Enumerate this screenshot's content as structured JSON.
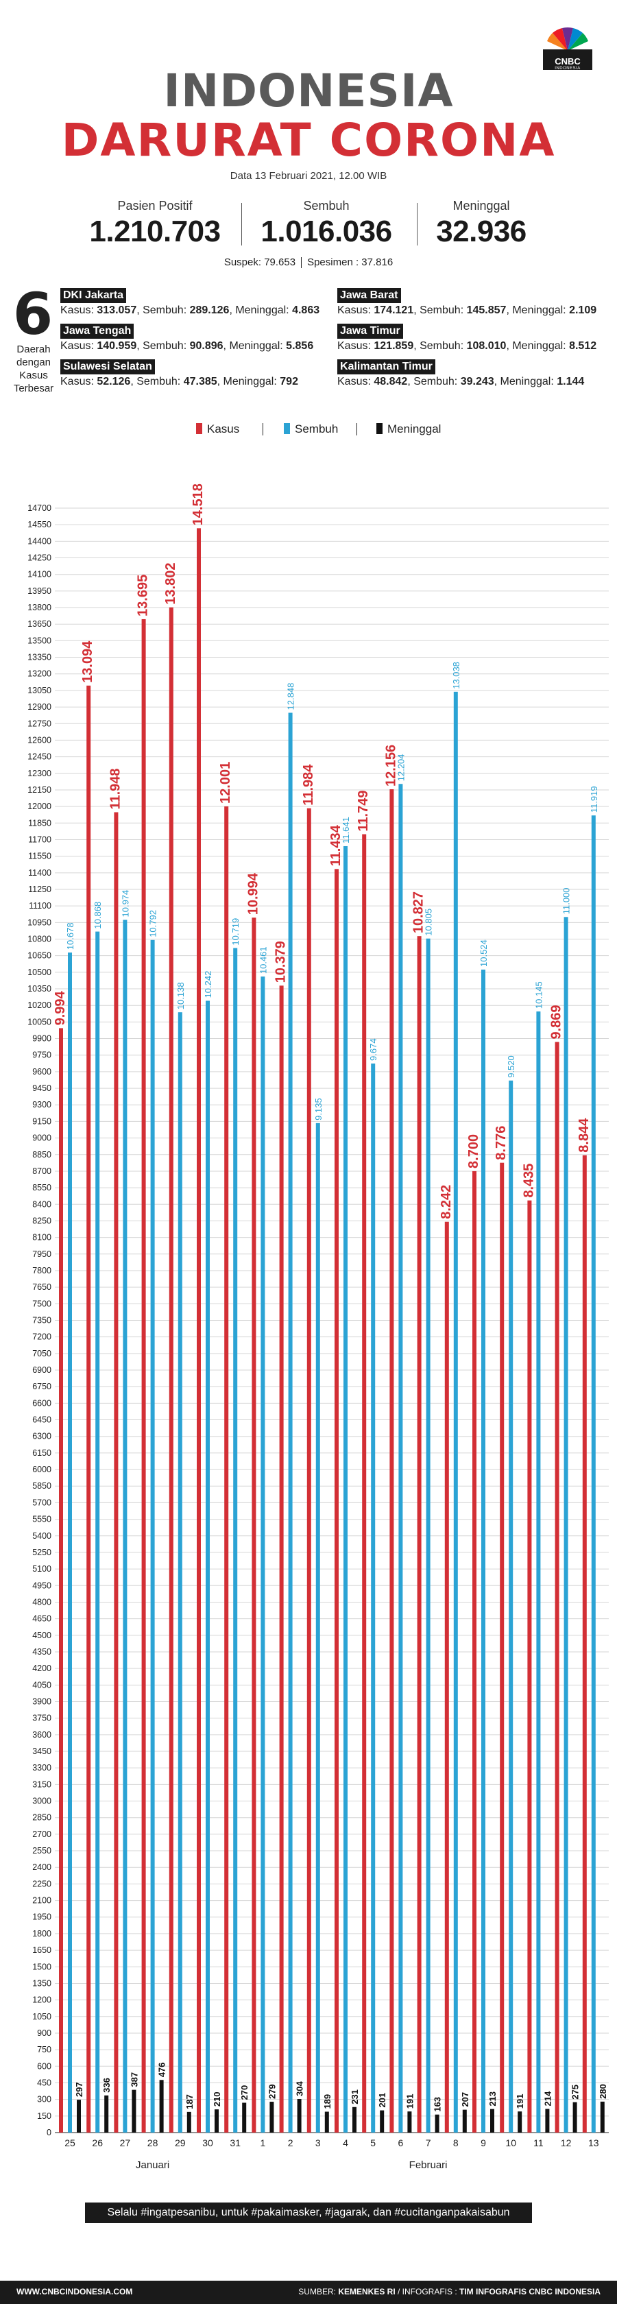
{
  "logo": {
    "text": "CNBC",
    "sub": "INDONESIA"
  },
  "header": {
    "title_line1": "INDONESIA",
    "title_line2": "DARURAT CORONA",
    "date": "Data 13 Februari 2021, 12.00 WIB"
  },
  "stats": {
    "positif_label": "Pasien Positif",
    "positif_value": "1.210.703",
    "sembuh_label": "Sembuh",
    "sembuh_value": "1.016.036",
    "meninggal_label": "Meninggal",
    "meninggal_value": "32.936",
    "suspek": "Suspek: 79.653",
    "spesimen": "Spesimen : 37.816"
  },
  "regions": {
    "count": "6",
    "count_label_line1": "Daerah",
    "count_label_line2": "dengan",
    "count_label_line3": "Kasus",
    "count_label_line4": "Terbesar",
    "items": [
      {
        "name": "DKI Jakarta",
        "kasus": "313.057",
        "sembuh": "289.126",
        "meninggal": "4.863"
      },
      {
        "name": "Jawa Barat",
        "kasus": "174.121",
        "sembuh": "145.857",
        "meninggal": "2.109"
      },
      {
        "name": "Jawa Tengah",
        "kasus": "140.959",
        "sembuh": "90.896",
        "meninggal": "5.856"
      },
      {
        "name": "Jawa Timur",
        "kasus": "121.859",
        "sembuh": "108.010",
        "meninggal": "8.512"
      },
      {
        "name": "Sulawesi Selatan",
        "kasus": "52.126",
        "sembuh": "47.385",
        "meninggal": "792"
      },
      {
        "name": "Kalimantan Timur",
        "kasus": "48.842",
        "sembuh": "39.243",
        "meninggal": "1.144"
      }
    ],
    "kasus_word": "Kasus:",
    "sembuh_word": "Sembuh:",
    "meninggal_word": "Meninggal:"
  },
  "colors": {
    "kasus": "#d32f35",
    "sembuh": "#2ba3d4",
    "meninggal": "#111111",
    "text": "#1a1a1a"
  },
  "chart_data": {
    "type": "bar",
    "categories": [
      "25",
      "26",
      "27",
      "28",
      "29",
      "30",
      "31",
      "1",
      "2",
      "3",
      "4",
      "5",
      "6",
      "7",
      "8",
      "9",
      "10",
      "11",
      "12",
      "13"
    ],
    "groups": [
      {
        "label": "Januari",
        "from": 0,
        "to": 6
      },
      {
        "label": "Februari",
        "from": 7,
        "to": 19
      }
    ],
    "series": [
      {
        "name": "Kasus",
        "color": "#d32f35",
        "values": [
          9994,
          13094,
          11948,
          13695,
          13802,
          14518,
          12001,
          10994,
          10379,
          11984,
          11434,
          11749,
          12156,
          10827,
          8242,
          8700,
          8776,
          8435,
          9869,
          8844
        ],
        "labels": [
          "9.994",
          "13.094",
          "11.948",
          "13.695",
          "13.802",
          "14.518",
          "12.001",
          "10.994",
          "10.379",
          "11.984",
          "11.434",
          "11.749",
          "12.156",
          "10.827",
          "8.242",
          "8.700",
          "8.776",
          "8.435",
          "9.869",
          "8.844"
        ]
      },
      {
        "name": "Sembuh",
        "color": "#2ba3d4",
        "values": [
          10678,
          10868,
          10974,
          10792,
          10138,
          10242,
          10719,
          10461,
          12848,
          9135,
          11641,
          9674,
          12204,
          10805,
          13038,
          10524,
          9520,
          10145,
          11000,
          11919
        ],
        "labels": [
          "10.678",
          "10.868",
          "10.974",
          "10.792",
          "10.138",
          "10.242",
          "10.719",
          "10.461",
          "12.848",
          "9.135",
          "11.641",
          "9.674",
          "12.204",
          "10.805",
          "13.038",
          "10.524",
          "9.520",
          "10.145",
          "11.000",
          "11.919"
        ]
      },
      {
        "name": "Meninggal",
        "color": "#111111",
        "values": [
          297,
          336,
          387,
          476,
          187,
          210,
          270,
          279,
          304,
          189,
          231,
          201,
          191,
          163,
          207,
          213,
          191,
          214,
          275,
          280
        ],
        "labels": [
          "297",
          "336",
          "387",
          "476",
          "187",
          "210",
          "270",
          "279",
          "304",
          "189",
          "231",
          "201",
          "191",
          "163",
          "207",
          "213",
          "191",
          "214",
          "275",
          "280"
        ]
      }
    ],
    "ylim": [
      0,
      14700
    ],
    "ytick_step": 150,
    "grid": true,
    "legend": "top-center"
  },
  "footer": {
    "slogan": "Selalu #ingatpesanibu, untuk #pakaimasker, #jagarak, dan #cucitanganpakaisabun",
    "site": "WWW.CNBCINDONESIA.COM",
    "source_prefix": "SUMBER: ",
    "source": "KEMENKES RI",
    "credit_prefix": " / INFOGRAFIS : ",
    "credit": "TIM INFOGRAFIS CNBC INDONESIA"
  }
}
